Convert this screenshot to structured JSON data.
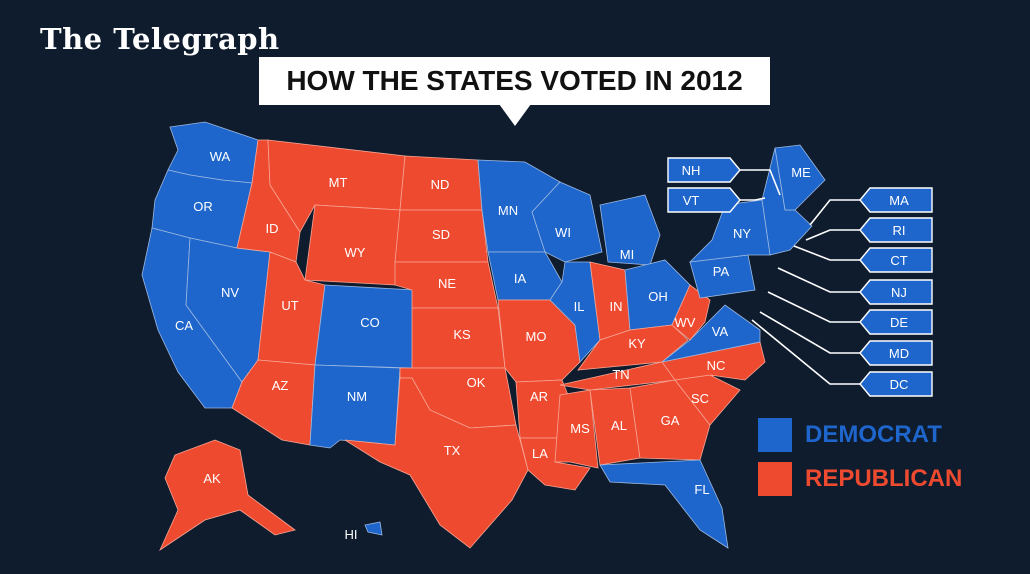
{
  "brand": "The Telegraph",
  "title": "HOW THE STATES VOTED IN 2012",
  "colors": {
    "democrat": "#1e66cc",
    "republican": "#ee4a30",
    "background": "#0f1c2e"
  },
  "legend": {
    "democrat": "DEMOCRAT",
    "republican": "REPUBLICAN"
  },
  "states": [
    {
      "abbr": "WA",
      "party": "democrat"
    },
    {
      "abbr": "OR",
      "party": "democrat"
    },
    {
      "abbr": "CA",
      "party": "democrat"
    },
    {
      "abbr": "NV",
      "party": "democrat"
    },
    {
      "abbr": "ID",
      "party": "republican"
    },
    {
      "abbr": "MT",
      "party": "republican"
    },
    {
      "abbr": "WY",
      "party": "republican"
    },
    {
      "abbr": "UT",
      "party": "republican"
    },
    {
      "abbr": "AZ",
      "party": "republican"
    },
    {
      "abbr": "CO",
      "party": "democrat"
    },
    {
      "abbr": "NM",
      "party": "democrat"
    },
    {
      "abbr": "ND",
      "party": "republican"
    },
    {
      "abbr": "SD",
      "party": "republican"
    },
    {
      "abbr": "NE",
      "party": "republican"
    },
    {
      "abbr": "KS",
      "party": "republican"
    },
    {
      "abbr": "OK",
      "party": "republican"
    },
    {
      "abbr": "TX",
      "party": "republican"
    },
    {
      "abbr": "MN",
      "party": "democrat"
    },
    {
      "abbr": "IA",
      "party": "democrat"
    },
    {
      "abbr": "MO",
      "party": "republican"
    },
    {
      "abbr": "AR",
      "party": "republican"
    },
    {
      "abbr": "LA",
      "party": "republican"
    },
    {
      "abbr": "WI",
      "party": "democrat"
    },
    {
      "abbr": "IL",
      "party": "democrat"
    },
    {
      "abbr": "MI",
      "party": "democrat"
    },
    {
      "abbr": "IN",
      "party": "republican"
    },
    {
      "abbr": "OH",
      "party": "democrat"
    },
    {
      "abbr": "KY",
      "party": "republican"
    },
    {
      "abbr": "TN",
      "party": "republican"
    },
    {
      "abbr": "MS",
      "party": "republican"
    },
    {
      "abbr": "AL",
      "party": "republican"
    },
    {
      "abbr": "GA",
      "party": "republican"
    },
    {
      "abbr": "FL",
      "party": "democrat"
    },
    {
      "abbr": "SC",
      "party": "republican"
    },
    {
      "abbr": "NC",
      "party": "republican"
    },
    {
      "abbr": "VA",
      "party": "democrat"
    },
    {
      "abbr": "WV",
      "party": "republican"
    },
    {
      "abbr": "PA",
      "party": "democrat"
    },
    {
      "abbr": "NY",
      "party": "democrat"
    },
    {
      "abbr": "ME",
      "party": "democrat"
    },
    {
      "abbr": "AK",
      "party": "republican"
    },
    {
      "abbr": "HI",
      "party": "democrat"
    }
  ],
  "callouts_left": [
    {
      "abbr": "NH",
      "party": "democrat"
    },
    {
      "abbr": "VT",
      "party": "democrat"
    }
  ],
  "callouts_right": [
    {
      "abbr": "MA",
      "party": "democrat"
    },
    {
      "abbr": "RI",
      "party": "democrat"
    },
    {
      "abbr": "CT",
      "party": "democrat"
    },
    {
      "abbr": "NJ",
      "party": "democrat"
    },
    {
      "abbr": "DE",
      "party": "democrat"
    },
    {
      "abbr": "MD",
      "party": "democrat"
    },
    {
      "abbr": "DC",
      "party": "democrat"
    }
  ]
}
